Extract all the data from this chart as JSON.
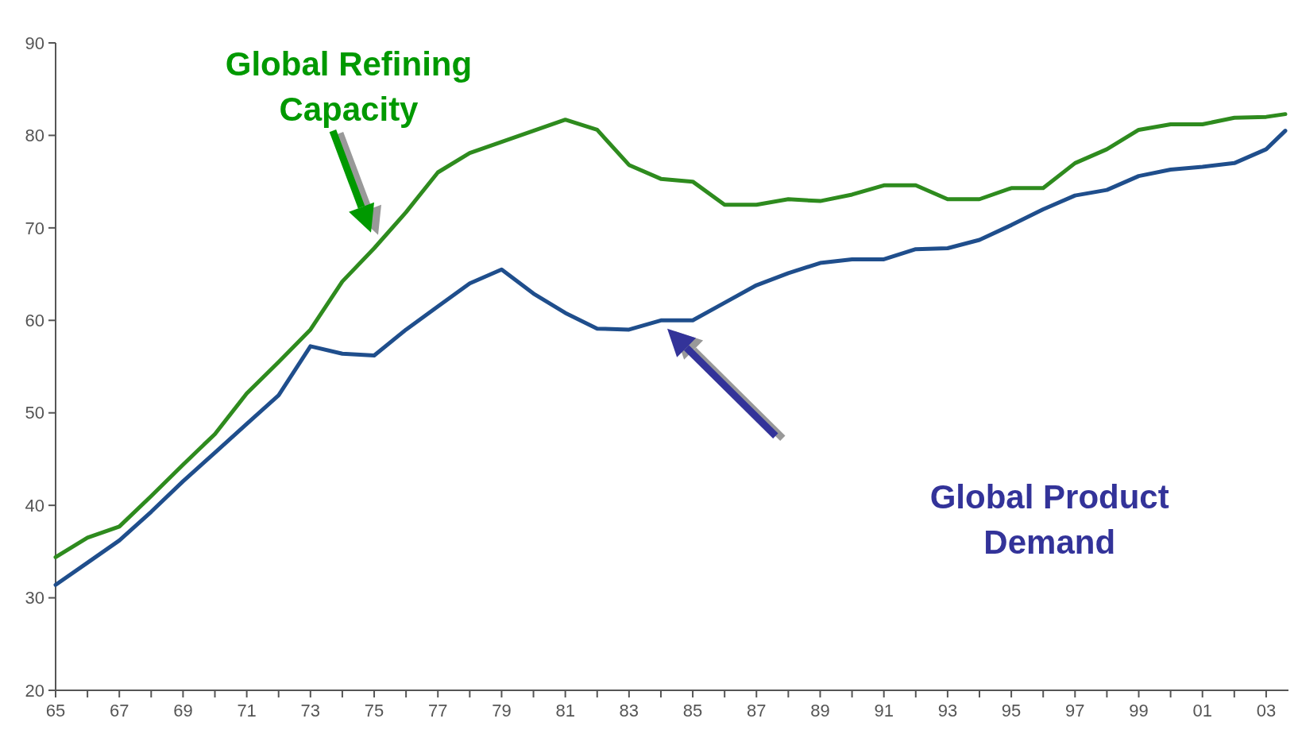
{
  "chart_data": {
    "type": "line",
    "x": [
      1965,
      1966,
      1967,
      1968,
      1969,
      1970,
      1971,
      1972,
      1973,
      1974,
      1975,
      1976,
      1977,
      1978,
      1979,
      1980,
      1981,
      1982,
      1983,
      1984,
      1985,
      1986,
      1987,
      1988,
      1989,
      1990,
      1991,
      1992,
      1993,
      1994,
      1995,
      1996,
      1997,
      1998,
      1999,
      2000,
      2001,
      2002,
      2003,
      2003.6
    ],
    "series": [
      {
        "name": "Global Refining Capacity",
        "color": "#2e8b1e",
        "values": [
          34.4,
          36.5,
          37.7,
          41,
          44.4,
          47.7,
          52.1,
          55.5,
          59,
          64.2,
          67.8,
          71.7,
          76,
          78.1,
          79.3,
          80.5,
          81.7,
          80.6,
          76.8,
          75.3,
          75,
          72.5,
          72.5,
          73.1,
          72.9,
          73.6,
          74.6,
          74.6,
          73.1,
          73.1,
          74.3,
          74.3,
          77,
          78.5,
          80.6,
          81.2,
          81.2,
          81.9,
          82,
          82.3
        ]
      },
      {
        "name": "Global Product Demand",
        "color": "#1f4e8c",
        "values": [
          31.4,
          33.8,
          36.2,
          39.3,
          42.6,
          45.7,
          48.8,
          51.9,
          57.2,
          56.4,
          56.2,
          59,
          61.5,
          64,
          65.5,
          62.9,
          60.8,
          59.1,
          59,
          60,
          60,
          61.9,
          63.8,
          65.1,
          66.2,
          66.6,
          66.6,
          67.7,
          67.8,
          68.7,
          70.3,
          72,
          73.5,
          74.1,
          75.6,
          76.3,
          76.6,
          77,
          78.5,
          80.5
        ]
      }
    ],
    "xlim": [
      1965,
      2003.7
    ],
    "xticks": [
      {
        "value": 1965,
        "label": "65"
      },
      {
        "value": 1966,
        "label": null
      },
      {
        "value": 1967,
        "label": "67"
      },
      {
        "value": 1968,
        "label": null
      },
      {
        "value": 1969,
        "label": "69"
      },
      {
        "value": 1970,
        "label": null
      },
      {
        "value": 1971,
        "label": "71"
      },
      {
        "value": 1972,
        "label": null
      },
      {
        "value": 1973,
        "label": "73"
      },
      {
        "value": 1974,
        "label": null
      },
      {
        "value": 1975,
        "label": "75"
      },
      {
        "value": 1976,
        "label": null
      },
      {
        "value": 1977,
        "label": "77"
      },
      {
        "value": 1978,
        "label": null
      },
      {
        "value": 1979,
        "label": "79"
      },
      {
        "value": 1980,
        "label": null
      },
      {
        "value": 1981,
        "label": "81"
      },
      {
        "value": 1982,
        "label": null
      },
      {
        "value": 1983,
        "label": "83"
      },
      {
        "value": 1984,
        "label": null
      },
      {
        "value": 1985,
        "label": "85"
      },
      {
        "value": 1986,
        "label": null
      },
      {
        "value": 1987,
        "label": "87"
      },
      {
        "value": 1988,
        "label": null
      },
      {
        "value": 1989,
        "label": "89"
      },
      {
        "value": 1990,
        "label": null
      },
      {
        "value": 1991,
        "label": "91"
      },
      {
        "value": 1992,
        "label": null
      },
      {
        "value": 1993,
        "label": "93"
      },
      {
        "value": 1994,
        "label": null
      },
      {
        "value": 1995,
        "label": "95"
      },
      {
        "value": 1996,
        "label": null
      },
      {
        "value": 1997,
        "label": "97"
      },
      {
        "value": 1998,
        "label": null
      },
      {
        "value": 1999,
        "label": "99"
      },
      {
        "value": 2000,
        "label": null
      },
      {
        "value": 2001,
        "label": "01"
      },
      {
        "value": 2002,
        "label": null
      },
      {
        "value": 2003,
        "label": "03"
      }
    ],
    "ylim": [
      20,
      90
    ],
    "yticks": [
      20,
      30,
      40,
      50,
      60,
      70,
      80,
      90
    ],
    "grid": false,
    "legend": false,
    "marker": "none",
    "line_style": "solid"
  }
}
